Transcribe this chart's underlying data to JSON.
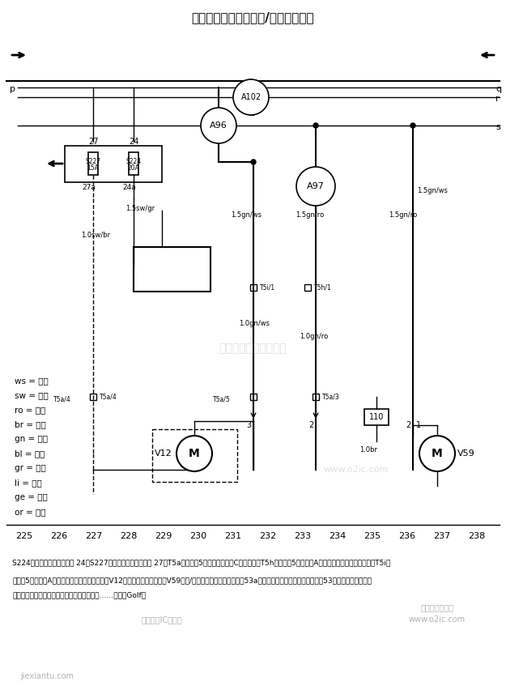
{
  "title": "后风窗雨刮器电机、前/后风窗喷洗泵",
  "bg_color": "#ffffff",
  "fig_width": 6.25,
  "fig_height": 8.52,
  "legend_items": [
    "ws = 白色",
    "sw = 黑色",
    "ro = 红色",
    "br = 棕色",
    "gn = 绿色",
    "bl = 蓝色",
    "gr = 灰色",
    "li = 紫色",
    "ge = 黄色",
    "or = 橙色"
  ],
  "bottom_numbers": [
    "225",
    "226",
    "227",
    "228",
    "229",
    "230",
    "231",
    "232",
    "233",
    "234",
    "235",
    "236",
    "237",
    "238"
  ],
  "bottom_text": "S224－保险丝支架上保险丝 24　S227－保险丝支架上保险丝 27　T5a－插头，5孔，粉色，左侧C柱分线器　T5h－插头，5孔，左侧A柱在下部附近，缠在线束内　T5i－插头，5孔，左侧A柱在下部附近，缠在线束内　V12：后风窗雨刮器电机　V59－前/后风窗喷洗泵　⑲－连接（53a），在仪表板线束内　⑮－连接（53），在仪表板线束内　⑲－连接（大灯雨刮器），在仪表板线束内　……－仅指Golf车",
  "watermark1": "杭州将睿科技有限公司",
  "watermark2": "www.o2ic.com"
}
